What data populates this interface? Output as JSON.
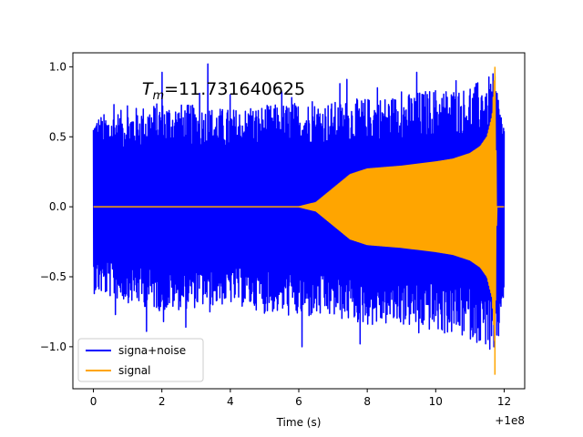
{
  "chart_data": {
    "type": "line",
    "title": "",
    "annotation": {
      "prefix": "T",
      "subscript": "m",
      "value": "=11.731640625",
      "x": 4.0,
      "y": 0.84
    },
    "xlabel": "Time (s)",
    "ylabel": "",
    "xlim": [
      -0.6,
      12.6
    ],
    "ylim": [
      -1.3,
      1.1
    ],
    "x_ticks": [
      0,
      2,
      4,
      6,
      8,
      10,
      12
    ],
    "x_tick_labels": [
      "0",
      "2",
      "4",
      "6",
      "8",
      "10",
      "12"
    ],
    "y_ticks": [
      -1.0,
      -0.5,
      0.0,
      0.5,
      1.0
    ],
    "y_tick_labels": [
      "−1.0",
      "−0.5",
      "0.0",
      "0.5",
      "1.0"
    ],
    "x_offset_label": "+1e8",
    "grid": false,
    "legend": {
      "placement": "lower-left"
    },
    "series": [
      {
        "name": "signa+noise",
        "color": "#0000ff",
        "style": "dense oscillation",
        "envelope": {
          "x": [
            0,
            2,
            4,
            6,
            7,
            8,
            9,
            10,
            11,
            11.5,
            11.73,
            12
          ],
          "upper": [
            0.65,
            0.75,
            0.7,
            0.75,
            0.75,
            0.78,
            0.8,
            0.85,
            0.85,
            0.95,
            0.95,
            0.6
          ],
          "lower": [
            -0.62,
            -0.75,
            -0.7,
            -0.8,
            -0.8,
            -0.85,
            -0.85,
            -0.9,
            -0.95,
            -1.0,
            -1.2,
            -0.62
          ]
        },
        "peaks": [
          {
            "x": 0.6,
            "y": 0.73
          },
          {
            "x": 0.65,
            "y": -0.77
          },
          {
            "x": 1.0,
            "y": 0.72
          },
          {
            "x": 1.5,
            "y": 0.85
          },
          {
            "x": 1.55,
            "y": -0.89
          },
          {
            "x": 2.0,
            "y": 0.96
          },
          {
            "x": 2.05,
            "y": -0.82
          },
          {
            "x": 2.7,
            "y": -0.86
          },
          {
            "x": 2.85,
            "y": 0.72
          },
          {
            "x": 3.1,
            "y": 0.81
          },
          {
            "x": 3.35,
            "y": 1.02
          },
          {
            "x": 3.4,
            "y": -0.75
          },
          {
            "x": 4.0,
            "y": 0.8
          },
          {
            "x": 4.6,
            "y": 0.7
          },
          {
            "x": 5.0,
            "y": -0.76
          },
          {
            "x": 5.5,
            "y": 0.82
          },
          {
            "x": 5.8,
            "y": 0.78
          },
          {
            "x": 6.1,
            "y": -1.0
          },
          {
            "x": 6.4,
            "y": 0.75
          },
          {
            "x": 7.2,
            "y": 0.88
          },
          {
            "x": 7.4,
            "y": 0.91
          },
          {
            "x": 7.8,
            "y": -0.98
          },
          {
            "x": 8.3,
            "y": 0.85
          },
          {
            "x": 9.0,
            "y": 0.82
          },
          {
            "x": 9.45,
            "y": 0.96
          },
          {
            "x": 9.5,
            "y": -0.9
          },
          {
            "x": 9.9,
            "y": 0.92
          },
          {
            "x": 10.2,
            "y": -0.88
          },
          {
            "x": 10.6,
            "y": 0.9
          },
          {
            "x": 11.0,
            "y": 0.84
          },
          {
            "x": 11.3,
            "y": -0.95
          },
          {
            "x": 11.5,
            "y": 0.72
          },
          {
            "x": 11.62,
            "y": 0.63
          },
          {
            "x": 11.7,
            "y": -1.0
          }
        ]
      },
      {
        "name": "signal",
        "color": "#ffa500",
        "style": "chirp",
        "envelope": {
          "x": [
            0,
            6,
            6.5,
            7,
            7.5,
            8,
            9,
            10,
            10.5,
            11,
            11.3,
            11.5,
            11.65,
            11.73,
            11.78,
            12
          ],
          "amplitude": [
            0.0,
            0.0,
            0.03,
            0.13,
            0.23,
            0.27,
            0.29,
            0.32,
            0.34,
            0.38,
            0.43,
            0.5,
            0.65,
            1.0,
            0.0,
            0.0
          ]
        },
        "peak": {
          "x": 11.73,
          "max": 1.0,
          "min": -1.2
        }
      }
    ]
  }
}
